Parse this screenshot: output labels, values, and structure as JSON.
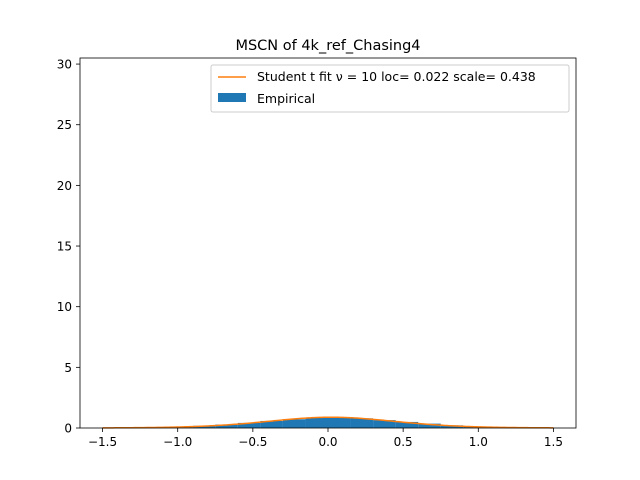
{
  "chart_data": {
    "type": "bar",
    "title": "MSCN of 4k_ref_Chasing4",
    "xlabel": "",
    "ylabel": "",
    "xlim": [
      -1.65,
      1.65
    ],
    "ylim": [
      0,
      30.5
    ],
    "xticks": [
      -1.5,
      -1.0,
      -0.5,
      0.0,
      0.5,
      1.0,
      1.5
    ],
    "xtick_labels": [
      "−1.5",
      "−1.0",
      "−0.5",
      "0.0",
      "0.5",
      "1.0",
      "1.5"
    ],
    "yticks": [
      0,
      5,
      10,
      15,
      20,
      25,
      30
    ],
    "ytick_labels": [
      "0",
      "5",
      "10",
      "15",
      "20",
      "25",
      "30"
    ],
    "grid": false,
    "legend_position": "top-right",
    "series": [
      {
        "name": "Student t fit ν = 10 loc= 0.022 scale= 0.438",
        "type": "line",
        "color": "#ff7f0e",
        "df": 10,
        "loc": 0.022,
        "scale": 0.438,
        "x_range": [
          -1.5,
          1.5
        ]
      },
      {
        "name": "Empirical",
        "type": "histogram",
        "color": "#1f77b4",
        "bin_edges": [
          -1.5,
          -1.35,
          -1.2,
          -1.05,
          -0.9,
          -0.75,
          -0.6,
          -0.45,
          -0.3,
          -0.15,
          0.0,
          0.15,
          0.3,
          0.45,
          0.6,
          0.75,
          0.9,
          1.05,
          1.2,
          1.35,
          1.5
        ],
        "values": [
          0.01,
          0.02,
          0.05,
          0.1,
          0.18,
          0.28,
          0.42,
          0.58,
          0.72,
          0.85,
          0.88,
          0.8,
          0.65,
          0.5,
          0.36,
          0.22,
          0.12,
          0.06,
          0.03,
          0.01
        ]
      }
    ]
  }
}
